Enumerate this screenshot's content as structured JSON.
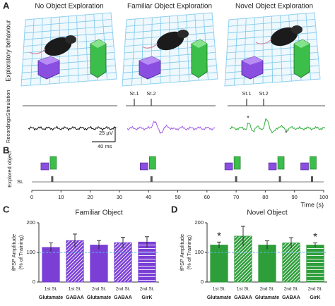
{
  "panel_a": {
    "label": "A",
    "titles": [
      "No Object Exploration",
      "Familiar Object Exploration",
      "Novel Object Exploration"
    ],
    "row_labels": [
      "Exploratory behaviour",
      "Stimulation",
      "Recordings"
    ],
    "stim_labels": [
      "St.1",
      "St.2",
      "St.1",
      "St.2"
    ],
    "scale_amplitude": "25 µV",
    "scale_time": "40 ms",
    "asterisks": [
      "*",
      "*"
    ]
  },
  "chart_data": [
    {
      "type": "timeline",
      "panel": "B",
      "ylabel": "Explored object",
      "xlabel": "Time (s)",
      "xlim": [
        0,
        100
      ],
      "xticks": [
        0,
        10,
        20,
        30,
        40,
        50,
        60,
        70,
        80,
        90,
        100
      ],
      "series": [
        {
          "name": "SL",
          "color": "#555555",
          "values": [
            7,
            41,
            70,
            85,
            96
          ]
        }
      ]
    },
    {
      "type": "bar",
      "panel": "C",
      "title": "Familiar Object",
      "ylabel": [
        "fPSP Amplitude",
        "(% of Training)"
      ],
      "categories": [
        "1st St.",
        "1st St.",
        "2nd St.",
        "2nd St.",
        "2nd St."
      ],
      "subcategories": [
        "Glutamate",
        "GABAA",
        "Glutamate",
        "GABAA",
        "GirK"
      ],
      "values": [
        117,
        140,
        125,
        133,
        135
      ],
      "errors": [
        15,
        22,
        15,
        18,
        18
      ],
      "patterns": [
        "solid",
        "diagonal",
        "solid",
        "diagonal",
        "horizontal"
      ],
      "color": "#7b3fd6",
      "reference_line": 100,
      "ylim": [
        0,
        200
      ],
      "yticks": [
        0,
        100,
        200
      ]
    },
    {
      "type": "bar",
      "panel": "D",
      "title": "Novel Object",
      "ylabel": [
        "fPSP Amplitude",
        "(% of Training)"
      ],
      "categories": [
        "1st St.",
        "1st St.",
        "2nd St.",
        "2nd St.",
        "2nd St."
      ],
      "subcategories": [
        "Glutamate",
        "GABAA",
        "Glutamate",
        "GABAA",
        "GirK"
      ],
      "values": [
        125,
        155,
        125,
        132,
        125
      ],
      "errors": [
        10,
        33,
        14,
        18,
        7
      ],
      "significance": [
        "*",
        null,
        null,
        null,
        "*"
      ],
      "patterns": [
        "solid",
        "diagonal",
        "solid",
        "diagonal",
        "horizontal"
      ],
      "color": "#2e9e3a",
      "reference_line": 100,
      "ylim": [
        0,
        200
      ],
      "yticks": [
        0,
        100,
        200
      ]
    }
  ]
}
